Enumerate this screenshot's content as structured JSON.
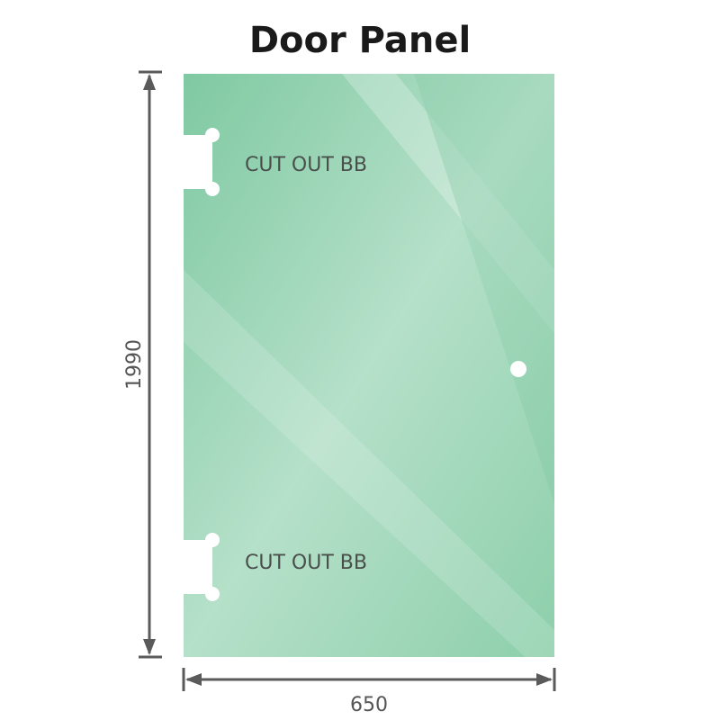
{
  "title": "Door Panel",
  "height_label": "1990",
  "width_label": "650",
  "cutouts": [
    {
      "label": "CUT OUT BB"
    },
    {
      "label": "CUT OUT BB"
    }
  ],
  "colors": {
    "glass": "#86cba6",
    "glass_light": "#b8e2cb",
    "dimension_line": "#5a5a5a",
    "text": "#4a4f4c"
  }
}
